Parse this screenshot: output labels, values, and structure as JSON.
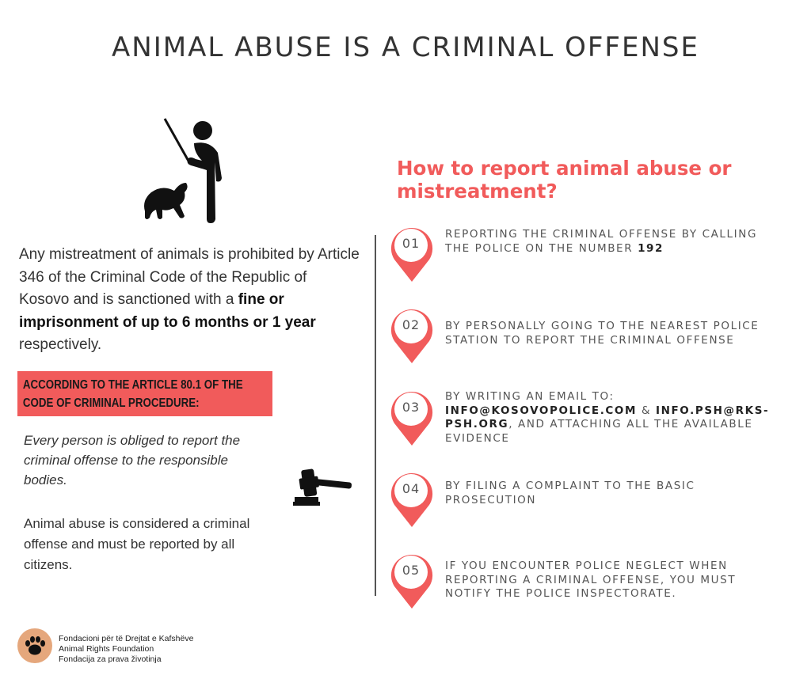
{
  "title": "ANIMAL ABUSE IS A CRIMINAL OFFENSE",
  "intro": {
    "part1": "Any mistreatment of animals is prohibited by Article 346 of the Criminal Code of the Republic of Kosovo and is sanctioned with a ",
    "bold1": "fine or imprisonment of up to 6 months or 1 year",
    "part2": " respectively."
  },
  "article_banner": "According to the Article 80.1 of the Code of Criminal Procedure:",
  "duty_text": "Every person is obliged to report the criminal offense to the responsible bodies.",
  "citizens_text": "Animal abuse is considered a criminal offense and must be reported by all citizens.",
  "report_heading": "How to report animal abuse or mistreatment?",
  "steps": [
    {
      "num": "01",
      "text": "Reporting the criminal offense by calling the police on the number ",
      "bold": "192"
    },
    {
      "num": "02",
      "text": "By personally going to the nearest police station to report the criminal offense"
    },
    {
      "num": "03",
      "pre": "By  writing an email to: ",
      "email1": "info@kosovopolice.com",
      "sep": " & ",
      "email2": "info.psh@rks-psh.org",
      "post": ", and attaching all the available evidence"
    },
    {
      "num": "04",
      "text": "By filing a complaint to the basic prosecution"
    },
    {
      "num": "05",
      "text": "If you encounter police neglect when reporting a criminal offense, you must notify the police inspectorate."
    }
  ],
  "org": {
    "line1": "Fondacioni për të Drejtat e Kafshëve",
    "line2": "Animal Rights Foundation",
    "line3": "Fondacija za prava životinja"
  },
  "icons": {
    "abuse": "person-with-stick-and-dog-icon",
    "gavel": "gavel-icon",
    "pin": "map-pin-icon",
    "logo": "paw-print-icon"
  },
  "colors": {
    "accent": "#f15b5b",
    "text": "#333333",
    "logo_bg": "#e5a77c"
  }
}
